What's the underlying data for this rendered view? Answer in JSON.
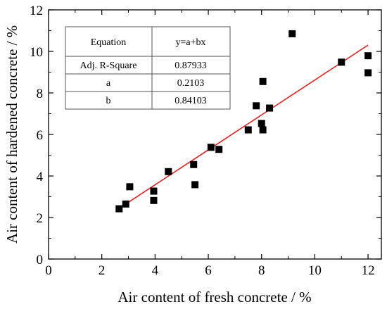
{
  "chart_data": {
    "type": "scatter",
    "xlabel": "Air content of fresh concrete / %",
    "ylabel": "Air content of hardened concrete / %",
    "xlim": [
      0,
      12.5
    ],
    "ylim": [
      0,
      12
    ],
    "x_ticks": [
      0,
      2,
      4,
      6,
      8,
      10,
      12
    ],
    "y_ticks": [
      0,
      2,
      4,
      6,
      8,
      10,
      12
    ],
    "grid": false,
    "points": [
      {
        "x": 2.65,
        "y": 2.42
      },
      {
        "x": 2.9,
        "y": 2.65
      },
      {
        "x": 3.05,
        "y": 3.48
      },
      {
        "x": 3.95,
        "y": 2.82
      },
      {
        "x": 3.95,
        "y": 3.27
      },
      {
        "x": 4.5,
        "y": 4.21
      },
      {
        "x": 5.45,
        "y": 4.55
      },
      {
        "x": 5.5,
        "y": 3.58
      },
      {
        "x": 6.1,
        "y": 5.38
      },
      {
        "x": 6.4,
        "y": 5.28
      },
      {
        "x": 7.5,
        "y": 6.22
      },
      {
        "x": 7.8,
        "y": 7.38
      },
      {
        "x": 8.0,
        "y": 6.53
      },
      {
        "x": 8.05,
        "y": 6.22
      },
      {
        "x": 8.05,
        "y": 8.55
      },
      {
        "x": 8.3,
        "y": 7.27
      },
      {
        "x": 9.15,
        "y": 10.85
      },
      {
        "x": 11.0,
        "y": 9.48
      },
      {
        "x": 12.0,
        "y": 8.97
      },
      {
        "x": 12.0,
        "y": 9.79
      }
    ],
    "fit_line": {
      "x_start": 2.65,
      "x_end": 12.0,
      "color": "#e8201f"
    },
    "marker_color": "#000000",
    "fit_table": {
      "rows": [
        [
          "Equation",
          "y=a+bx"
        ],
        [
          "Adj. R-Square",
          "0.87933"
        ],
        [
          "a",
          "0.2103"
        ],
        [
          "b",
          "0.84103"
        ]
      ]
    }
  }
}
